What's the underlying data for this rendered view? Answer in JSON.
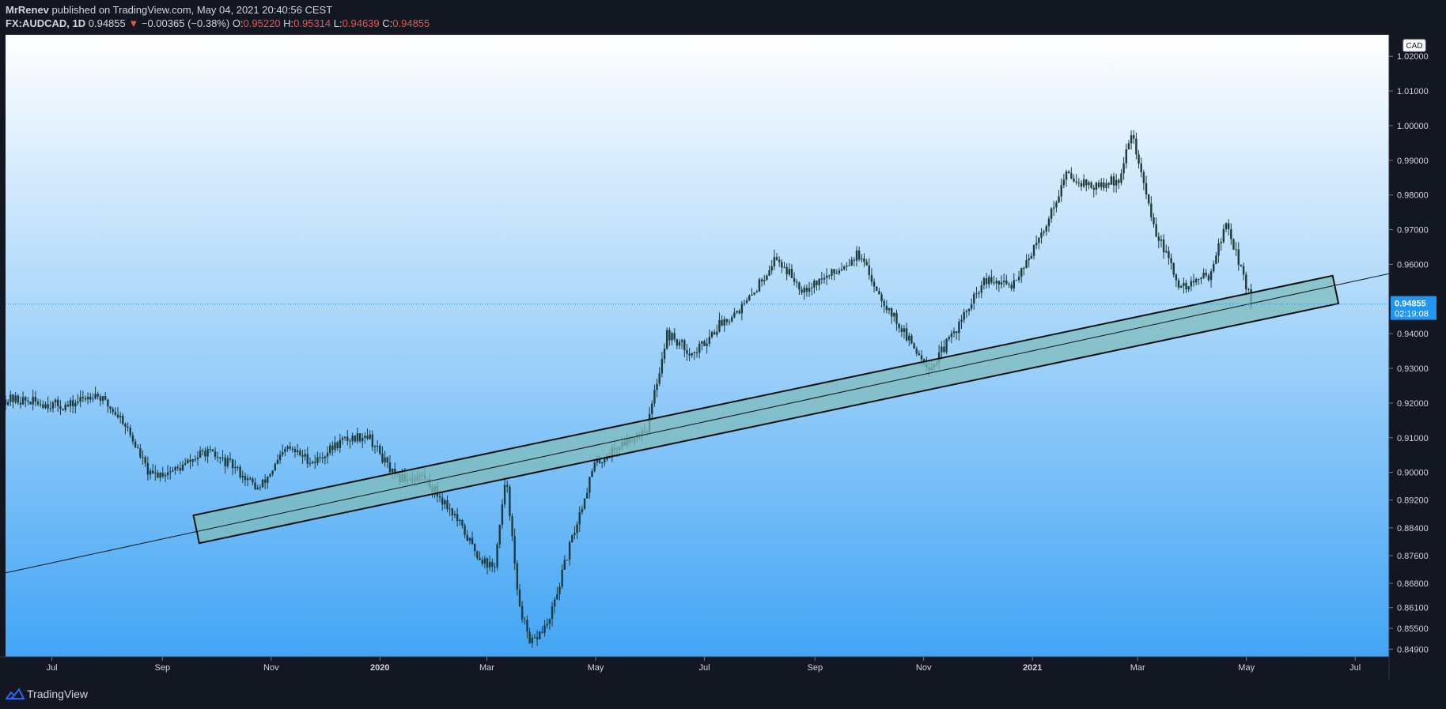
{
  "header": {
    "author": "MrRenev",
    "published_text": "published on TradingView.com, May 04, 2021 20:40:56 CEST",
    "symbol": "FX:AUDCAD, 1D",
    "last": "0.94855",
    "change_arrow": "▼",
    "change": "−0.00365 (−0.38%)",
    "o_label": "O:",
    "o_value": "0.95220",
    "h_label": "H:",
    "h_value": "0.95314",
    "l_label": "L:",
    "l_value": "0.94639",
    "c_label": "C:",
    "c_value": "0.94855"
  },
  "price_axis": {
    "currency": "CAD",
    "last_price_label": "0.94855",
    "countdown_label": "02:19:08"
  },
  "footer": {
    "brand": "TradingView"
  },
  "colors": {
    "bg_top": "#ffffff",
    "bg_bottom": "#42a5f5",
    "candle": "#1e3a3a",
    "channel_fill": "#7fbcbc",
    "last_price_badge": "#2196f3",
    "down": "#ef5350"
  },
  "chart_data": {
    "type": "candlestick",
    "symbol": "FX:AUDCAD",
    "interval": "1D",
    "price_ticks": [
      "1.02000",
      "1.01000",
      "1.00000",
      "0.99000",
      "0.98000",
      "0.97000",
      "0.96000",
      "0.94000",
      "0.93000",
      "0.92000",
      "0.91000",
      "0.90000",
      "0.89200",
      "0.88400",
      "0.87600",
      "0.86800",
      "0.86100",
      "0.85500",
      "0.84900"
    ],
    "time_ticks": [
      {
        "label": "Jul",
        "bold": false
      },
      {
        "label": "Sep",
        "bold": false
      },
      {
        "label": "Nov",
        "bold": false
      },
      {
        "label": "2020",
        "bold": true
      },
      {
        "label": "Mar",
        "bold": false
      },
      {
        "label": "May",
        "bold": false
      },
      {
        "label": "Jul",
        "bold": false
      },
      {
        "label": "Sep",
        "bold": false
      },
      {
        "label": "Nov",
        "bold": false
      },
      {
        "label": "2021",
        "bold": true
      },
      {
        "label": "Mar",
        "bold": false
      },
      {
        "label": "May",
        "bold": false
      },
      {
        "label": "Jul",
        "bold": false
      }
    ],
    "close_path": [
      [
        "2019-06-10",
        0.921
      ],
      [
        "2019-07-10",
        0.919
      ],
      [
        "2019-07-25",
        0.923
      ],
      [
        "2019-08-10",
        0.915
      ],
      [
        "2019-08-25",
        0.899
      ],
      [
        "2019-09-10",
        0.901
      ],
      [
        "2019-09-25",
        0.906
      ],
      [
        "2019-10-10",
        0.902
      ],
      [
        "2019-10-25",
        0.895
      ],
      [
        "2019-11-10",
        0.907
      ],
      [
        "2019-11-25",
        0.903
      ],
      [
        "2019-12-10",
        0.909
      ],
      [
        "2019-12-25",
        0.911
      ],
      [
        "2020-01-10",
        0.898
      ],
      [
        "2020-01-25",
        0.899
      ],
      [
        "2020-02-10",
        0.889
      ],
      [
        "2020-02-25",
        0.876
      ],
      [
        "2020-03-05",
        0.872
      ],
      [
        "2020-03-12",
        0.899
      ],
      [
        "2020-03-18",
        0.865
      ],
      [
        "2020-03-25",
        0.85
      ],
      [
        "2020-04-05",
        0.857
      ],
      [
        "2020-04-15",
        0.876
      ],
      [
        "2020-04-30",
        0.902
      ],
      [
        "2020-05-15",
        0.908
      ],
      [
        "2020-05-30",
        0.913
      ],
      [
        "2020-06-10",
        0.94
      ],
      [
        "2020-06-25",
        0.934
      ],
      [
        "2020-07-10",
        0.943
      ],
      [
        "2020-07-25",
        0.949
      ],
      [
        "2020-08-10",
        0.962
      ],
      [
        "2020-08-25",
        0.953
      ],
      [
        "2020-09-10",
        0.957
      ],
      [
        "2020-09-25",
        0.963
      ],
      [
        "2020-10-10",
        0.949
      ],
      [
        "2020-10-25",
        0.937
      ],
      [
        "2020-11-05",
        0.93
      ],
      [
        "2020-11-20",
        0.942
      ],
      [
        "2020-12-05",
        0.955
      ],
      [
        "2020-12-20",
        0.954
      ],
      [
        "2021-01-05",
        0.967
      ],
      [
        "2021-01-20",
        0.986
      ],
      [
        "2021-02-05",
        0.982
      ],
      [
        "2021-02-20",
        0.985
      ],
      [
        "2021-02-25",
        0.999
      ],
      [
        "2021-03-10",
        0.971
      ],
      [
        "2021-03-25",
        0.953
      ],
      [
        "2021-04-10",
        0.957
      ],
      [
        "2021-04-20",
        0.972
      ],
      [
        "2021-05-04",
        0.9486
      ]
    ],
    "channel": {
      "start_date": "2019-09-20",
      "end_date": "2021-06-20",
      "start_price": 0.8836,
      "end_price": 0.9527,
      "width_price": 0.0082
    },
    "trendline": {
      "start_date": "2019-06-05",
      "start_price": 0.871,
      "end_date": "2021-07-20",
      "end_price": 0.9573
    },
    "last_price": 0.94855,
    "ylim": [
      0.8468,
      1.0262
    ]
  }
}
